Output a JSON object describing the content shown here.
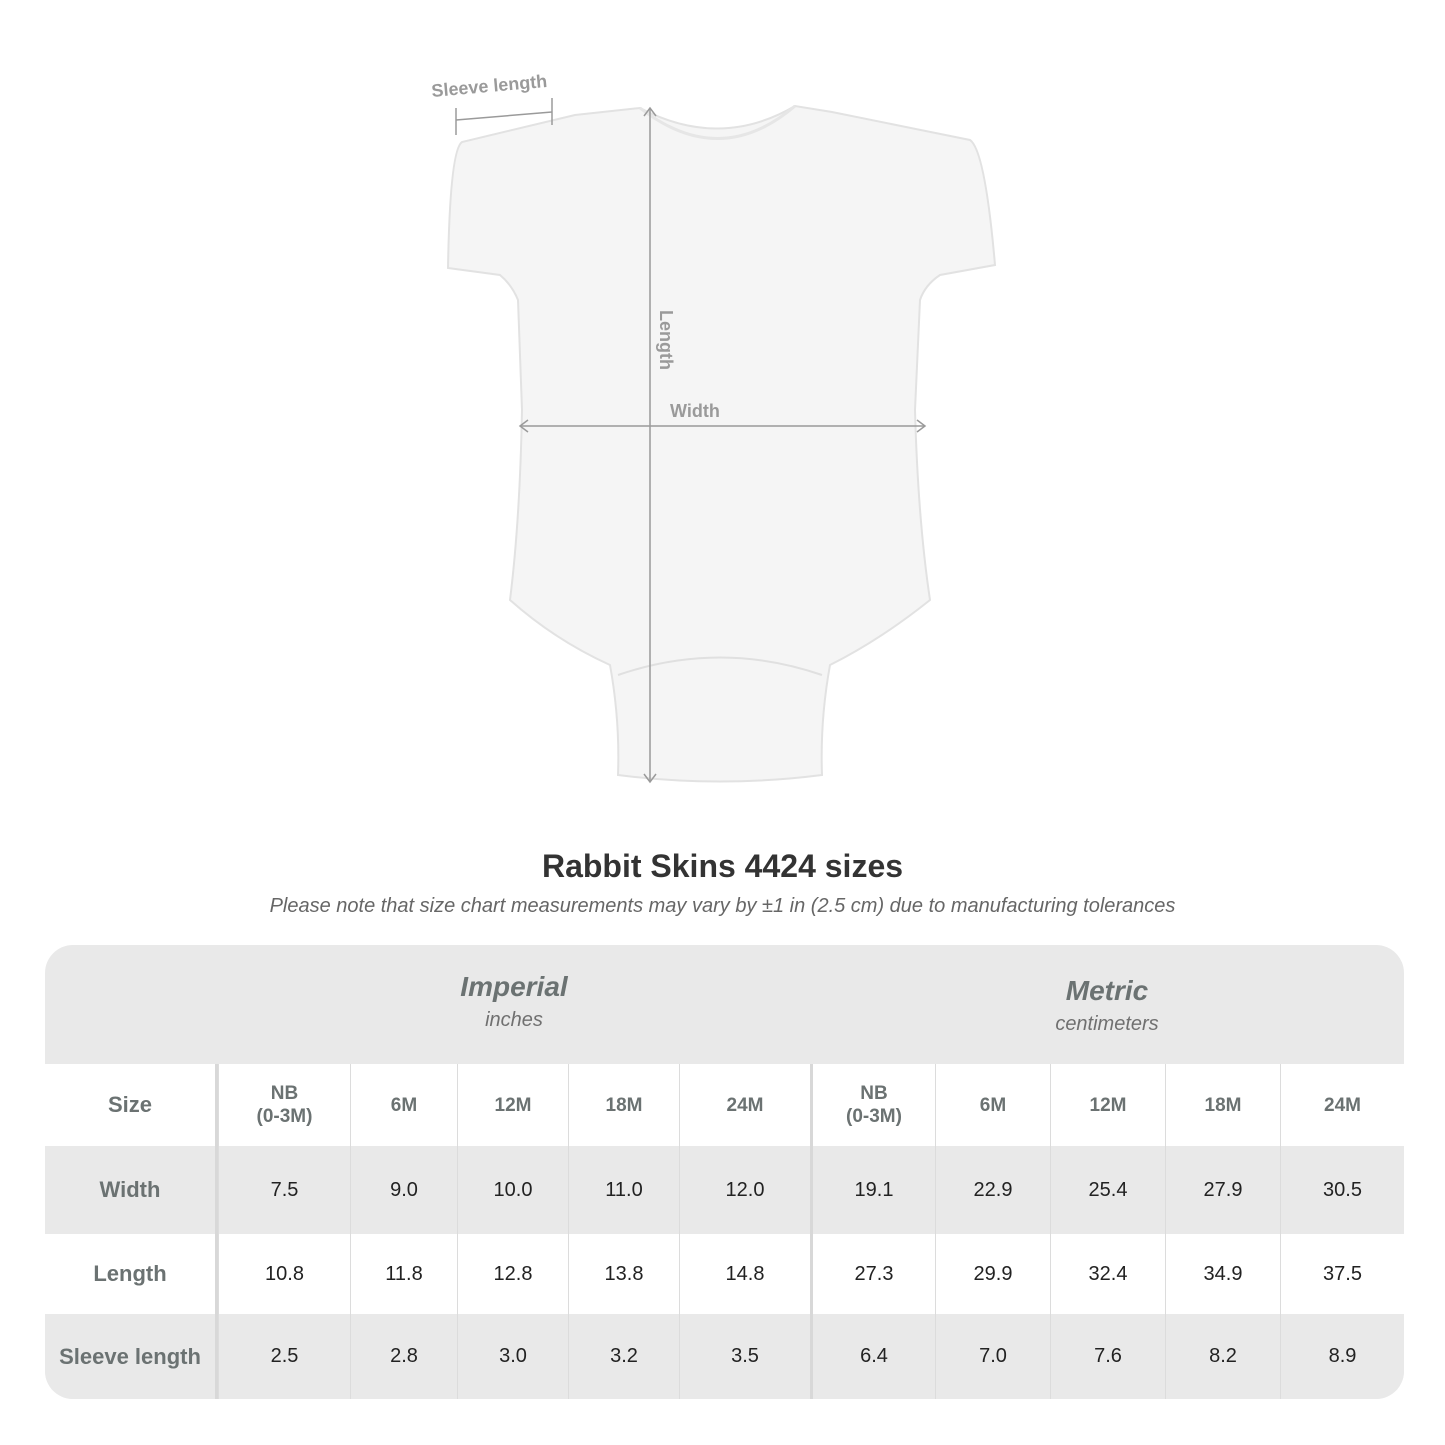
{
  "diagram": {
    "labels": {
      "sleeve": "Sleeve length",
      "length": "Length",
      "width": "Width"
    }
  },
  "title": "Rabbit Skins 4424 sizes",
  "note": "Please note that size chart measurements may vary by ±1 in (2.5 cm) due to manufacturing tolerances",
  "table": {
    "imperial": {
      "name": "Imperial",
      "unit": "inches"
    },
    "metric": {
      "name": "Metric",
      "unit": "centimeters"
    },
    "size_label": "Size",
    "sizes": [
      "NB\n(0-3M)",
      "6M",
      "12M",
      "18M",
      "24M"
    ],
    "rows": [
      {
        "label": "Width",
        "imperial": [
          "7.5",
          "9.0",
          "10.0",
          "11.0",
          "12.0"
        ],
        "metric": [
          "19.1",
          "22.9",
          "25.4",
          "27.9",
          "30.5"
        ]
      },
      {
        "label": "Length",
        "imperial": [
          "10.8",
          "11.8",
          "12.8",
          "13.8",
          "14.8"
        ],
        "metric": [
          "27.3",
          "29.9",
          "32.4",
          "34.9",
          "37.5"
        ]
      },
      {
        "label": "Sleeve length",
        "imperial": [
          "2.5",
          "2.8",
          "3.0",
          "3.2",
          "3.5"
        ],
        "metric": [
          "6.4",
          "7.0",
          "7.6",
          "8.2",
          "8.9"
        ]
      }
    ]
  }
}
